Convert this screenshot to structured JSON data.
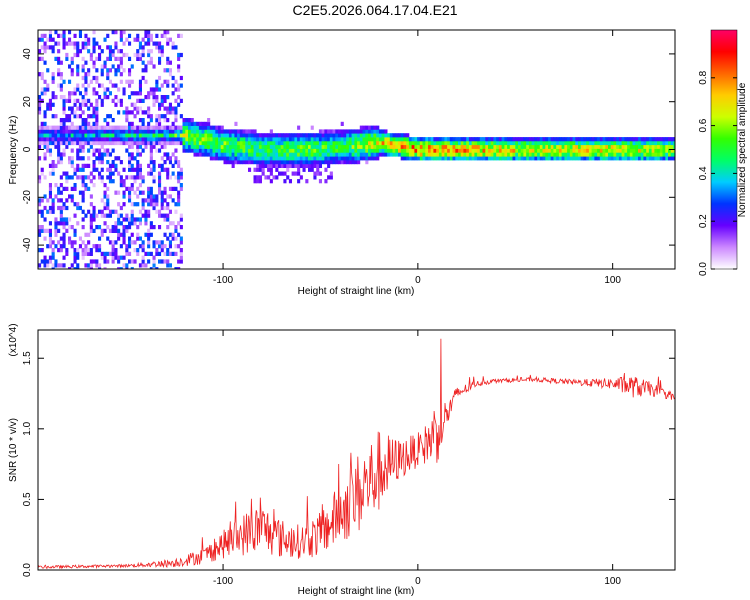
{
  "title": "C2E5.2026.064.17.04.E21",
  "chart_data": [
    {
      "type": "heatmap",
      "name": "spectrogram",
      "xlabel": "Height of straight line (km)",
      "ylabel": "Frequency (Hz)",
      "xlim": [
        -195,
        132
      ],
      "ylim": [
        -50,
        50
      ],
      "xticks": [
        -100,
        0,
        100
      ],
      "yticks": [
        -40,
        -20,
        0,
        20,
        40
      ],
      "xtick_labels": [
        "-100",
        "0",
        "100"
      ],
      "ytick_labels": [
        "-40",
        "-20",
        "0",
        "20",
        "40"
      ],
      "colorbar": {
        "label": "Normalized spectral amplitude",
        "range": [
          0,
          1
        ],
        "ticks": [
          0.0,
          0.2,
          0.4,
          0.6,
          0.8
        ],
        "tick_labels": [
          "0.0",
          "0.2",
          "0.4",
          "0.6",
          "0.8"
        ],
        "colors": [
          "#ffffff",
          "#cc88ff",
          "#6600ff",
          "#0033ff",
          "#00ccff",
          "#00ff66",
          "#33ff00",
          "#ccff00",
          "#ffcc00",
          "#ff6600",
          "#ff0000",
          "#ff0066"
        ]
      },
      "ridge": {
        "description_points_x": [
          -195,
          -160,
          -120,
          -100,
          -80,
          -60,
          -40,
          -20,
          0,
          20,
          60,
          100,
          132
        ],
        "description_points_freq": [
          6,
          6,
          6,
          2,
          0,
          0,
          1,
          3,
          0,
          0,
          0,
          0,
          0
        ],
        "peak_amplitude": [
          0.4,
          0.45,
          0.6,
          0.55,
          0.5,
          0.55,
          0.5,
          0.7,
          0.8,
          0.75,
          0.65,
          0.7,
          0.6
        ]
      }
    },
    {
      "type": "line",
      "name": "snr",
      "xlabel": "Height of straight line (km)",
      "ylabel": "SNR (10 * v/v)",
      "scale_label": "(x10^4)",
      "xlim": [
        -195,
        132
      ],
      "ylim": [
        0,
        1.7
      ],
      "xticks": [
        -100,
        0,
        100
      ],
      "yticks": [
        0.0,
        0.5,
        1.0,
        1.5
      ],
      "xtick_labels": [
        "-100",
        "0",
        "100"
      ],
      "ytick_labels": [
        "0.0",
        "0.5",
        "1.0",
        "1.5"
      ],
      "color": "#ee2222",
      "envelope_x": [
        -195,
        -150,
        -125,
        -110,
        -100,
        -90,
        -80,
        -70,
        -60,
        -50,
        -40,
        -30,
        -20,
        -10,
        0,
        5,
        10,
        15,
        20,
        30,
        40,
        60,
        80,
        100,
        110,
        120,
        132
      ],
      "envelope_y": [
        0.02,
        0.03,
        0.05,
        0.1,
        0.18,
        0.25,
        0.3,
        0.22,
        0.2,
        0.25,
        0.4,
        0.55,
        0.7,
        0.78,
        0.85,
        0.9,
        1.0,
        1.1,
        1.25,
        1.32,
        1.34,
        1.35,
        1.33,
        1.32,
        1.3,
        1.28,
        1.22
      ],
      "noise_x": [
        -195,
        -150,
        -125,
        -110,
        -100,
        -90,
        -80,
        -70,
        -60,
        -50,
        -40,
        -30,
        -20,
        -10,
        0,
        5,
        10,
        15,
        20,
        30,
        40,
        60,
        80,
        100,
        110,
        120,
        132
      ],
      "noise_y": [
        0.01,
        0.01,
        0.03,
        0.06,
        0.1,
        0.15,
        0.18,
        0.14,
        0.12,
        0.16,
        0.22,
        0.3,
        0.3,
        0.15,
        0.12,
        0.15,
        0.25,
        0.1,
        0.05,
        0.02,
        0.015,
        0.015,
        0.02,
        0.04,
        0.08,
        0.05,
        0.02
      ]
    }
  ]
}
